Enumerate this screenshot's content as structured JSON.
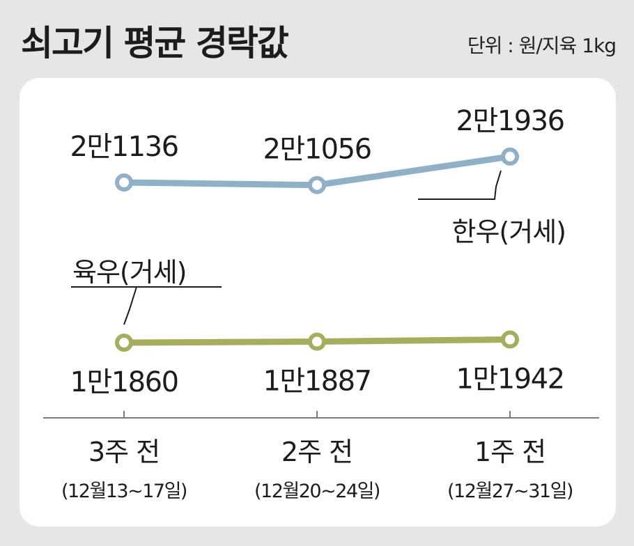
{
  "header": {
    "title": "쇠고기 평균 경락값",
    "unit": "단위 : 원/지육 1kg"
  },
  "colors": {
    "hanwoo": "#8fb0c6",
    "yukwoo": "#a7ad5f",
    "background": "#e6e6e6",
    "panel": "#ffffff"
  },
  "chart_data": {
    "type": "line",
    "categories": [
      "3주 전",
      "2주 전",
      "1주 전"
    ],
    "category_sublabels": [
      "(12월13~17일)",
      "(12월20~24일)",
      "(12월27~31일)"
    ],
    "series": [
      {
        "name": "한우(거세)",
        "values": [
          21136,
          21056,
          21936
        ],
        "labels": [
          "2만1136",
          "2만1056",
          "2만1936"
        ]
      },
      {
        "name": "육우(거세)",
        "values": [
          11860,
          11887,
          11942
        ],
        "labels": [
          "1만1860",
          "1만1887",
          "1만1942"
        ]
      }
    ],
    "ylim": [
      9000,
      24000
    ],
    "unit": "원/지육 1kg",
    "grid": false,
    "legend": "callouts"
  }
}
